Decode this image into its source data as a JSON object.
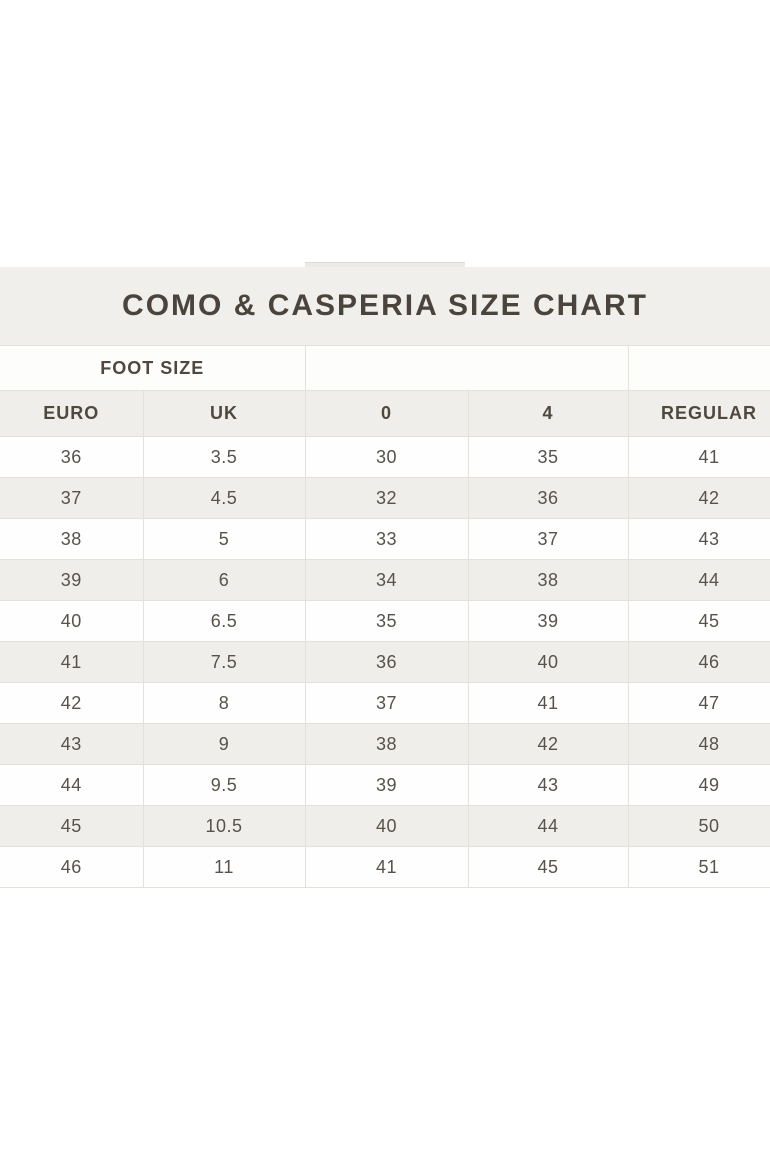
{
  "banner": {
    "title": "COMO & CASPERIA SIZE CHART",
    "background": "#f1efeb",
    "title_color": "#4a443d"
  },
  "table": {
    "group_label": "FOOT SIZE"
  },
  "chart_data": {
    "type": "table",
    "title": "COMO & CASPERIA SIZE CHART",
    "group_header": {
      "label": "FOOT SIZE",
      "spans_columns": [
        "EURO",
        "UK"
      ]
    },
    "columns": [
      "EURO",
      "UK",
      "0",
      "4",
      "REGULAR"
    ],
    "rows": [
      [
        "36",
        "3.5",
        "30",
        "35",
        "41"
      ],
      [
        "37",
        "4.5",
        "32",
        "36",
        "42"
      ],
      [
        "38",
        "5",
        "33",
        "37",
        "43"
      ],
      [
        "39",
        "6",
        "34",
        "38",
        "44"
      ],
      [
        "40",
        "6.5",
        "35",
        "39",
        "45"
      ],
      [
        "41",
        "7.5",
        "36",
        "40",
        "46"
      ],
      [
        "42",
        "8",
        "37",
        "41",
        "47"
      ],
      [
        "43",
        "9",
        "38",
        "42",
        "48"
      ],
      [
        "44",
        "9.5",
        "39",
        "43",
        "49"
      ],
      [
        "45",
        "10.5",
        "40",
        "44",
        "50"
      ],
      [
        "46",
        "11",
        "41",
        "45",
        "51"
      ]
    ],
    "layout": {
      "row_striping": [
        "white",
        "beige"
      ],
      "beige_color": "#f0eeea",
      "border_color": "#e4e1db",
      "right_column_cropped": true
    }
  },
  "colors": {
    "page_background": "#ffffff",
    "band_background": "#f1efeb",
    "alt_row_background": "#f0eeea",
    "border": "#e4e1db",
    "header_text": "#4e4841",
    "cell_text": "#57524b"
  }
}
